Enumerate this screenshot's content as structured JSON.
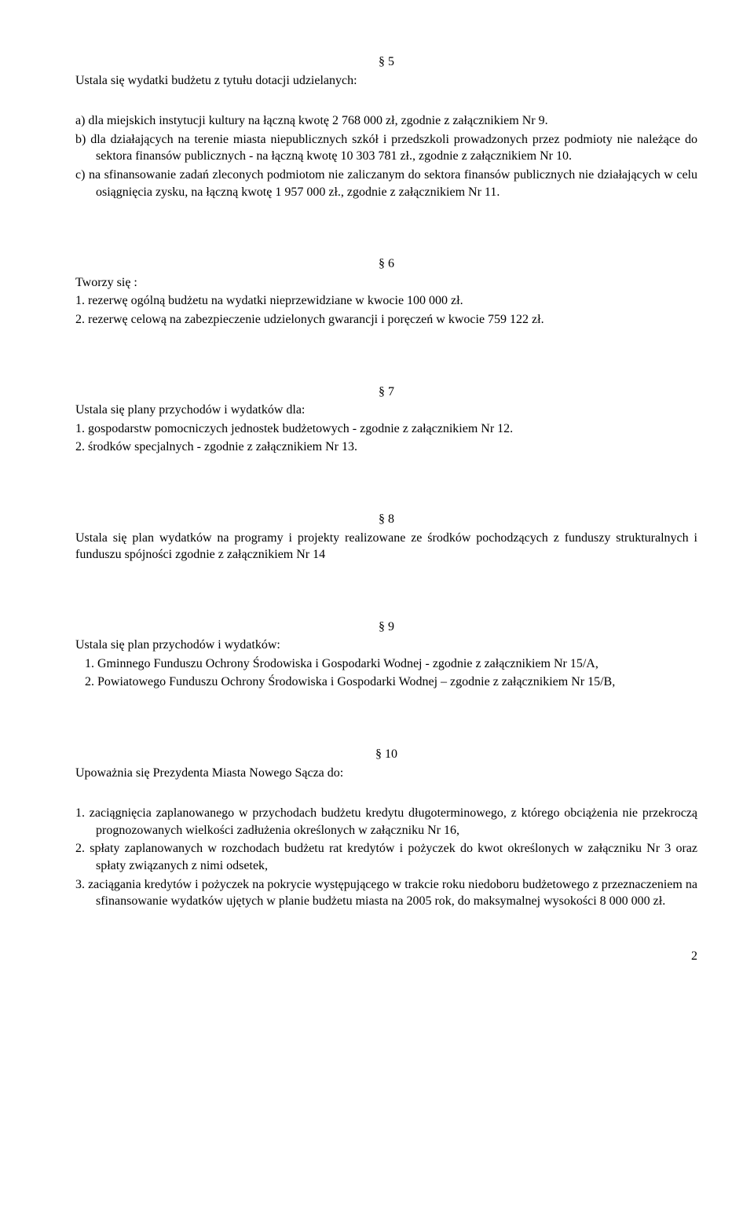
{
  "s5": {
    "num": "§ 5",
    "intro": "Ustala się wydatki budżetu z tytułu dotacji udzielanych:",
    "a": "a) dla miejskich instytucji kultury na łączną kwotę 2 768 000 zł, zgodnie z załącznikiem Nr 9.",
    "b": "b) dla działających na terenie miasta niepublicznych szkół i przedszkoli prowadzonych przez podmioty nie należące do sektora finansów publicznych - na łączną kwotę 10 303 781 zł., zgodnie z załącznikiem Nr 10.",
    "c": "c) na sfinansowanie zadań zleconych podmiotom nie zaliczanym do sektora finansów publicznych nie działających w celu osiągnięcia zysku, na łączną kwotę 1 957 000 zł., zgodnie z załącznikiem Nr 11."
  },
  "s6": {
    "num": "§ 6",
    "intro": "Tworzy się :",
    "i1": "1. rezerwę ogólną budżetu na wydatki nieprzewidziane w kwocie 100 000 zł.",
    "i2": "2. rezerwę celową na zabezpieczenie udzielonych gwarancji i poręczeń w kwocie 759 122 zł."
  },
  "s7": {
    "num": "§ 7",
    "intro": "Ustala się plany przychodów i wydatków dla:",
    "i1": "1. gospodarstw pomocniczych jednostek budżetowych - zgodnie z załącznikiem Nr 12.",
    "i2": "2. środków specjalnych - zgodnie z załącznikiem Nr 13."
  },
  "s8": {
    "num": "§ 8",
    "text": "Ustala się plan wydatków na programy i projekty realizowane ze środków pochodzących z funduszy strukturalnych i funduszu spójności zgodnie z załącznikiem Nr 14"
  },
  "s9": {
    "num": "§ 9",
    "intro": "Ustala się plan przychodów i wydatków:",
    "i1": "1. Gminnego Funduszu Ochrony Środowiska i Gospodarki Wodnej - zgodnie z załącznikiem Nr 15/A,",
    "i2": "2. Powiatowego Funduszu Ochrony Środowiska i Gospodarki Wodnej – zgodnie z załącznikiem Nr 15/B,"
  },
  "s10": {
    "num": "§ 10",
    "intro": "Upoważnia się Prezydenta Miasta Nowego Sącza do:",
    "i1": "1. zaciągnięcia zaplanowanego w przychodach budżetu kredytu długoterminowego, z którego obciążenia nie przekroczą prognozowanych wielkości zadłużenia określonych w załączniku Nr 16,",
    "i2": "2. spłaty zaplanowanych w rozchodach budżetu rat kredytów i pożyczek do kwot określonych w załączniku Nr 3 oraz spłaty związanych z nimi odsetek,",
    "i3": "3. zaciągania kredytów i pożyczek na pokrycie występującego w trakcie roku niedoboru budżetowego z przeznaczeniem na sfinansowanie wydatków ujętych w planie budżetu miasta na  2005 rok, do maksymalnej wysokości 8 000 000 zł."
  },
  "page": "2"
}
